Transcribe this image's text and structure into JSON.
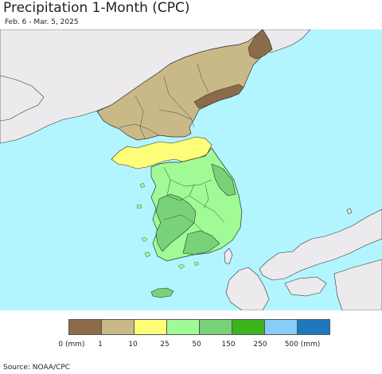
{
  "title": "Precipitation 1-Month (CPC)",
  "subtitle": "Feb. 6 - Mar. 5, 2025",
  "legend": {
    "colors": [
      "#8b6b48",
      "#c9b987",
      "#fdfd78",
      "#a0fa96",
      "#78d278",
      "#3cb41e",
      "#87cdfa",
      "#1e78be"
    ],
    "ticks": [
      "0 (mm)",
      "1",
      "10",
      "25",
      "50",
      "150",
      "250",
      "500 (mm)"
    ]
  },
  "source": "Source: NOAA/CPC",
  "map_colors": {
    "sea": "#b3f5ff",
    "foreign_land": "#eceaec",
    "class_0_1": "#8b6b48",
    "class_1_10": "#c9b987",
    "class_10_25": "#fdfd78",
    "class_25_50": "#a0fa96",
    "class_50_150": "#78d278"
  }
}
